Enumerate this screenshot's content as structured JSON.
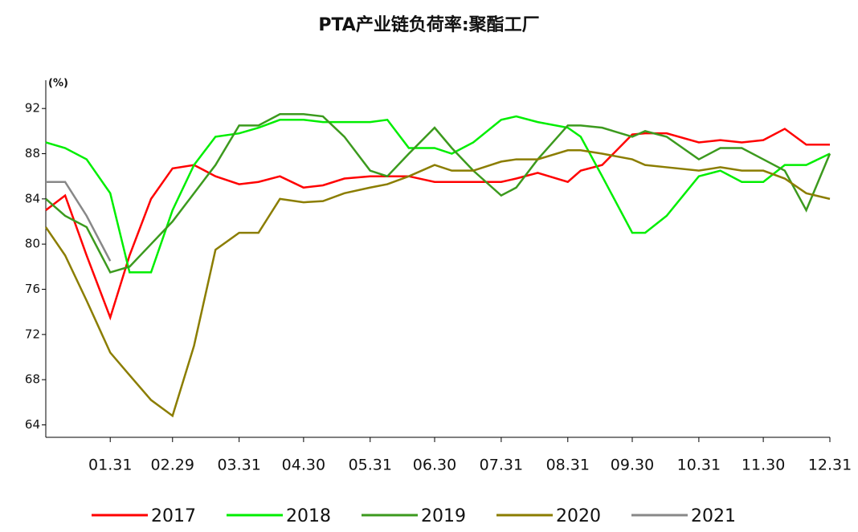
{
  "chart_data": {
    "type": "line",
    "title": "PTA产业链负荷率:聚酯工厂",
    "y_unit": "(%)",
    "x": [
      1,
      10,
      20,
      31,
      40,
      50,
      60,
      70,
      80,
      91,
      100,
      110,
      121,
      130,
      140,
      152,
      160,
      170,
      182,
      190,
      200,
      213,
      220,
      230,
      244,
      250,
      260,
      274,
      280,
      290,
      305,
      315,
      325,
      335,
      345,
      355,
      366
    ],
    "xlim": [
      1,
      366
    ],
    "xticks": [
      {
        "value": 31,
        "label": "01.31"
      },
      {
        "value": 60,
        "label": "02.29"
      },
      {
        "value": 91,
        "label": "03.31"
      },
      {
        "value": 121,
        "label": "04.30"
      },
      {
        "value": 152,
        "label": "05.31"
      },
      {
        "value": 182,
        "label": "06.30"
      },
      {
        "value": 213,
        "label": "07.31"
      },
      {
        "value": 244,
        "label": "08.31"
      },
      {
        "value": 274,
        "label": "09.30"
      },
      {
        "value": 305,
        "label": "10.31"
      },
      {
        "value": 335,
        "label": "11.30"
      },
      {
        "value": 366,
        "label": "12.31"
      }
    ],
    "ylim": [
      62.9,
      94.5
    ],
    "yticks": [
      64,
      68,
      72,
      76,
      80,
      84,
      88,
      92
    ],
    "series": [
      {
        "name": "2017",
        "color": "#ff0000",
        "values": [
          83,
          84.3,
          79,
          73.5,
          79,
          84,
          86.7,
          87,
          86,
          85.3,
          85.5,
          86,
          85,
          85.2,
          85.8,
          86,
          86,
          86,
          85.5,
          85.5,
          85.5,
          85.5,
          85.8,
          86.3,
          85.5,
          86.5,
          87,
          89.7,
          89.8,
          89.8,
          89,
          89.2,
          89,
          89.2,
          90.2,
          88.8,
          88.8
        ]
      },
      {
        "name": "2018",
        "color": "#00ee00",
        "values": [
          89,
          88.5,
          87.5,
          84.5,
          77.5,
          77.5,
          83,
          87,
          89.5,
          89.8,
          90.3,
          91,
          91,
          90.8,
          90.8,
          90.8,
          91,
          88.5,
          88.5,
          88,
          89,
          91,
          91.3,
          90.8,
          90.3,
          89.5,
          86,
          81,
          81,
          82.5,
          86,
          86.5,
          85.5,
          85.5,
          87,
          87,
          88
        ]
      },
      {
        "name": "2019",
        "color": "#3c9a1e",
        "values": [
          84,
          82.5,
          81.5,
          77.5,
          78,
          80,
          82,
          84.5,
          87,
          90.5,
          90.5,
          91.5,
          91.5,
          91.3,
          89.5,
          86.5,
          86,
          88,
          90.3,
          88.5,
          86.5,
          84.3,
          85,
          87.5,
          90.5,
          90.5,
          90.3,
          89.5,
          90,
          89.5,
          87.5,
          88.5,
          88.5,
          87.5,
          86.5,
          83,
          88
        ]
      },
      {
        "name": "2020",
        "color": "#8b7d00",
        "values": [
          81.5,
          79,
          75,
          70.4,
          68.4,
          66.2,
          64.8,
          71,
          79.5,
          81,
          81,
          84,
          83.7,
          83.8,
          84.5,
          85,
          85.3,
          86,
          87,
          86.5,
          86.5,
          87.3,
          87.5,
          87.5,
          88.3,
          88.3,
          88,
          87.5,
          87,
          86.8,
          86.5,
          86.8,
          86.5,
          86.5,
          85.8,
          84.5,
          84
        ]
      },
      {
        "name": "2021",
        "color": "#888888",
        "values": [
          85.5,
          85.5,
          82.5,
          78.5,
          null,
          null,
          null,
          null,
          null,
          null,
          null,
          null,
          null,
          null,
          null,
          null,
          null,
          null,
          null,
          null,
          null,
          null,
          null,
          null,
          null,
          null,
          null,
          null,
          null,
          null,
          null,
          null,
          null,
          null,
          null,
          null,
          null
        ]
      }
    ]
  }
}
